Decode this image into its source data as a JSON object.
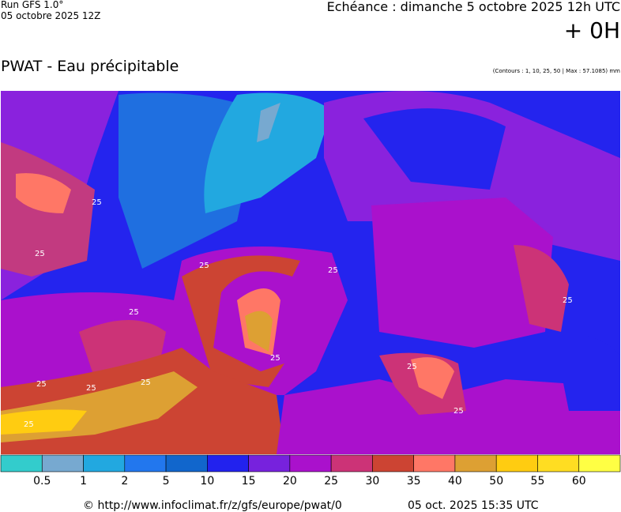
{
  "header": {
    "run": "Run GFS 1.0°",
    "run_date": "05 octobre 2025 12Z",
    "deadline": "Echéance : dimanche 5 octobre 2025 12h UTC",
    "offset": "+ 0H",
    "title": "PWAT - Eau précipitable",
    "contours": "(Contours : 1, 10, 25, 50 | Max : 57.1085) mm"
  },
  "map": {
    "contour_labels": [
      "25",
      "25",
      "25",
      "25",
      "25",
      "25",
      "25",
      "25",
      "25",
      "25",
      "25",
      "25",
      "25"
    ]
  },
  "legend": {
    "colors": [
      "#33cccc",
      "#77a9d0",
      "#22a8e0",
      "#2277ee",
      "#1166cc",
      "#2222ee",
      "#7722dd",
      "#aa11cc",
      "#cc3377",
      "#cc4433",
      "#ff7766",
      "#dda033",
      "#ffcc11",
      "#ffdd22",
      "#ffff44"
    ],
    "labels": [
      "0.5",
      "1",
      "2",
      "5",
      "10",
      "15",
      "20",
      "25",
      "30",
      "35",
      "40",
      "50",
      "55",
      "60"
    ]
  },
  "footer": {
    "url": "© http://www.infoclimat.fr/z/gfs/europe/pwat/0",
    "generated": "05 oct. 2025 15:35 UTC"
  }
}
